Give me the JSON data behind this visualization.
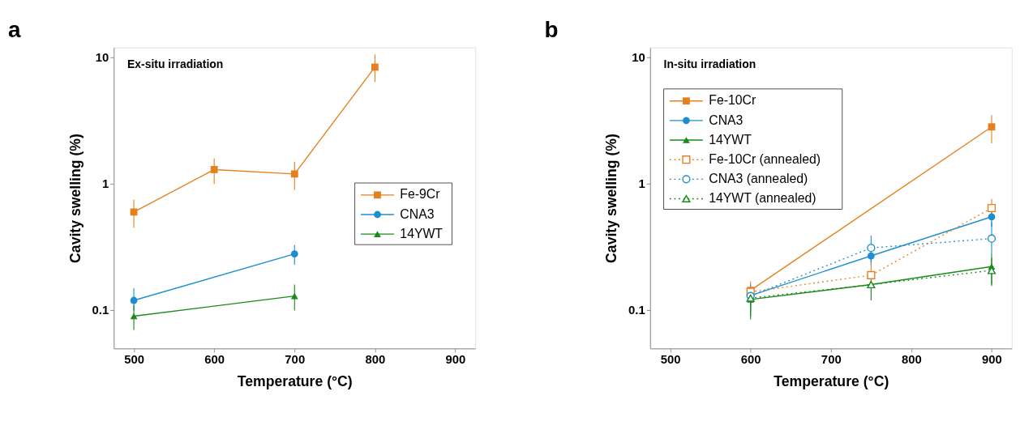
{
  "chart_data": [
    {
      "type": "line",
      "title": "a",
      "xlabel": "Temperature (°C)",
      "ylabel": "Cavity swelling (%)",
      "annotations": [
        "Ex-situ irradiation"
      ],
      "log": "y",
      "xlim": [
        475,
        925
      ],
      "xticks": [
        500,
        600,
        700,
        800,
        900
      ],
      "ylim": [
        0.05,
        12
      ],
      "yticks": [
        0.1,
        1,
        10
      ],
      "grid": false,
      "legend": "right",
      "series": [
        {
          "name": "Fe-9Cr",
          "color": "#e5801f",
          "marker": "square",
          "line_style": "solid",
          "x": [
            500,
            600,
            700,
            800
          ],
          "values": [
            0.6,
            1.3,
            1.2,
            8.4
          ],
          "errors": [
            [
              0.45,
              0.75
            ],
            [
              1.0,
              1.6
            ],
            [
              0.9,
              1.5
            ],
            [
              6.4,
              10.6
            ]
          ]
        },
        {
          "name": "CNA3",
          "color": "#1f8ed0",
          "marker": "circle",
          "line_style": "solid",
          "x": [
            500,
            700
          ],
          "values": [
            0.12,
            0.28
          ],
          "errors": [
            [
              0.1,
              0.15
            ],
            [
              0.23,
              0.33
            ]
          ]
        },
        {
          "name": "14YWT",
          "color": "#1a8a1a",
          "marker": "triangle",
          "line_style": "solid",
          "x": [
            500,
            700
          ],
          "values": [
            0.09,
            0.13
          ],
          "errors": [
            [
              0.07,
              0.11
            ],
            [
              0.1,
              0.16
            ]
          ]
        }
      ]
    },
    {
      "type": "line",
      "title": "b",
      "xlabel": "Temperature (°C)",
      "ylabel": "Cavity swelling (%)",
      "annotations": [
        "In-situ irradiation"
      ],
      "log": "y",
      "xlim": [
        475,
        925
      ],
      "xticks": [
        500,
        600,
        700,
        800,
        900
      ],
      "ylim": [
        0.05,
        12
      ],
      "yticks": [
        0.1,
        1,
        10
      ],
      "grid": false,
      "legend": "top left",
      "series": [
        {
          "name": "Fe-10Cr",
          "color": "#e5801f",
          "marker": "square",
          "line_style": "solid",
          "x": [
            600,
            900
          ],
          "values": [
            0.144,
            2.83
          ],
          "errors": [
            [
              0.11,
              0.17
            ],
            [
              2.1,
              3.5
            ]
          ]
        },
        {
          "name": "CNA3",
          "color": "#1f8ed0",
          "marker": "circle",
          "line_style": "solid",
          "x": [
            600,
            750,
            900
          ],
          "values": [
            0.131,
            0.27,
            0.55
          ],
          "errors": [
            [
              0.1,
              0.16
            ],
            [
              0.23,
              0.32
            ],
            [
              0.46,
              0.62
            ]
          ]
        },
        {
          "name": "14YWT",
          "color": "#1a8a1a",
          "marker": "triangle",
          "line_style": "solid",
          "x": [
            600,
            750,
            900
          ],
          "values": [
            0.122,
            0.16,
            0.222
          ],
          "errors": [
            [
              0.09,
              0.14
            ],
            [
              0.12,
              0.2
            ],
            [
              0.156,
              0.28
            ]
          ]
        },
        {
          "name": "Fe-10Cr (annealed)",
          "color": "#e5801f",
          "marker": "square",
          "line_style": "dotted",
          "x": [
            600,
            750,
            900
          ],
          "values": [
            0.14,
            0.19,
            0.645
          ],
          "errors": [
            null,
            [
              0.15,
              0.235
            ],
            [
              0.54,
              0.76
            ]
          ]
        },
        {
          "name": "CNA3 (annealed)",
          "color": "#1f8ed0",
          "marker": "circle",
          "line_style": "dotted",
          "x": [
            600,
            750,
            900
          ],
          "values": [
            0.13,
            0.312,
            0.37
          ],
          "errors": [
            null,
            [
              0.24,
              0.39
            ],
            [
              0.28,
              0.5
            ]
          ]
        },
        {
          "name": "14YWT (annealed)",
          "color": "#1a8a1a",
          "marker": "triangle",
          "line_style": "dotted",
          "x": [
            600,
            750,
            900
          ],
          "values": [
            0.125,
            0.16,
            0.207
          ],
          "errors": [
            [
              0.085,
              0.15
            ],
            null,
            [
              0.16,
              0.26
            ]
          ]
        }
      ]
    }
  ]
}
